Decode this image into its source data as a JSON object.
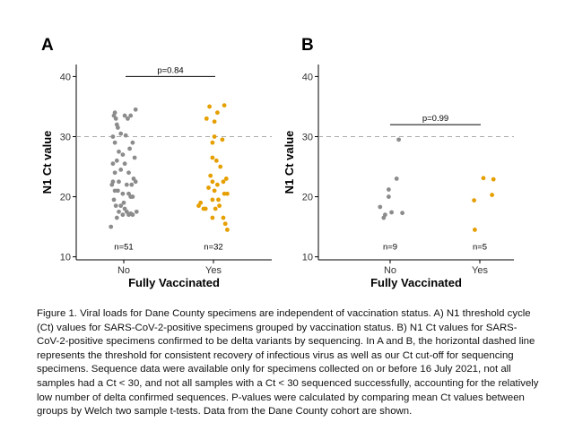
{
  "chart_data": [
    {
      "panel_label": "A",
      "type": "scatter",
      "xlabel": "Fully Vaccinated",
      "ylabel": "N1 Ct value",
      "categories": [
        "No",
        "Yes"
      ],
      "ylim": [
        9.5,
        42
      ],
      "yticks": [
        "10",
        "20",
        "30",
        "40"
      ],
      "threshold": 30,
      "grid": false,
      "colors": {
        "No": "#8c8c8c",
        "Yes": "#e69f00"
      },
      "pvalue_label": "p=0.84",
      "n_labels": [
        "n=51",
        "n=32"
      ],
      "series": [
        {
          "name": "No",
          "points": [
            {
              "j": -0.26,
              "y": 15.0
            },
            {
              "j": -0.22,
              "y": 22.5
            },
            {
              "j": -0.18,
              "y": 21.0
            },
            {
              "j": -0.14,
              "y": 16.5
            },
            {
              "j": -0.1,
              "y": 17.5
            },
            {
              "j": -0.06,
              "y": 18.5
            },
            {
              "j": -0.02,
              "y": 17.0
            },
            {
              "j": 0.02,
              "y": 18.0
            },
            {
              "j": 0.06,
              "y": 17.5
            },
            {
              "j": 0.1,
              "y": 17.0
            },
            {
              "j": 0.14,
              "y": 17.2
            },
            {
              "j": 0.18,
              "y": 17.0
            },
            {
              "j": 0.26,
              "y": 17.5
            },
            {
              "j": -0.2,
              "y": 33.5
            },
            {
              "j": -0.18,
              "y": 34.0
            },
            {
              "j": -0.16,
              "y": 33.0
            },
            {
              "j": -0.14,
              "y": 32.0
            },
            {
              "j": -0.12,
              "y": 31.5
            },
            {
              "j": 0.02,
              "y": 33.5
            },
            {
              "j": 0.08,
              "y": 33.0
            },
            {
              "j": 0.14,
              "y": 33.5
            },
            {
              "j": 0.24,
              "y": 34.5
            },
            {
              "j": -0.22,
              "y": 30.0
            },
            {
              "j": -0.06,
              "y": 30.5
            },
            {
              "j": 0.04,
              "y": 30.2
            },
            {
              "j": 0.18,
              "y": 29.0
            },
            {
              "j": -0.18,
              "y": 29.0
            },
            {
              "j": -0.1,
              "y": 27.5
            },
            {
              "j": 0.12,
              "y": 28.0
            },
            {
              "j": -0.02,
              "y": 27.0
            },
            {
              "j": -0.22,
              "y": 25.5
            },
            {
              "j": -0.14,
              "y": 26.0
            },
            {
              "j": 0.02,
              "y": 25.5
            },
            {
              "j": 0.22,
              "y": 26.5
            },
            {
              "j": -0.18,
              "y": 24.0
            },
            {
              "j": -0.06,
              "y": 24.5
            },
            {
              "j": 0.1,
              "y": 24.0
            },
            {
              "j": 0.2,
              "y": 23.0
            },
            {
              "j": -0.24,
              "y": 22.0
            },
            {
              "j": -0.1,
              "y": 22.5
            },
            {
              "j": 0.06,
              "y": 22.0
            },
            {
              "j": 0.16,
              "y": 22.0
            },
            {
              "j": 0.24,
              "y": 22.5
            },
            {
              "j": -0.12,
              "y": 21.0
            },
            {
              "j": -0.02,
              "y": 20.5
            },
            {
              "j": 0.1,
              "y": 20.5
            },
            {
              "j": 0.18,
              "y": 20.0
            },
            {
              "j": -0.2,
              "y": 19.5
            },
            {
              "j": 0.0,
              "y": 19.0
            },
            {
              "j": 0.14,
              "y": 20.0
            },
            {
              "j": -0.16,
              "y": 18.5
            }
          ]
        },
        {
          "name": "Yes",
          "points": [
            {
              "j": -0.08,
              "y": 35.0
            },
            {
              "j": 0.08,
              "y": 34.0
            },
            {
              "j": 0.22,
              "y": 35.2
            },
            {
              "j": -0.14,
              "y": 33.0
            },
            {
              "j": 0.02,
              "y": 32.5
            },
            {
              "j": 0.02,
              "y": 30.0
            },
            {
              "j": -0.02,
              "y": 29.0
            },
            {
              "j": 0.18,
              "y": 29.5
            },
            {
              "j": -0.02,
              "y": 26.5
            },
            {
              "j": 0.06,
              "y": 26.0
            },
            {
              "j": 0.14,
              "y": 25.0
            },
            {
              "j": -0.06,
              "y": 23.5
            },
            {
              "j": 0.26,
              "y": 23.0
            },
            {
              "j": -0.02,
              "y": 22.5
            },
            {
              "j": 0.08,
              "y": 22.0
            },
            {
              "j": 0.2,
              "y": 22.5
            },
            {
              "j": -0.1,
              "y": 21.5
            },
            {
              "j": 0.02,
              "y": 21.0
            },
            {
              "j": 0.22,
              "y": 20.5
            },
            {
              "j": 0.28,
              "y": 20.5
            },
            {
              "j": -0.26,
              "y": 19.0
            },
            {
              "j": -0.02,
              "y": 19.5
            },
            {
              "j": 0.1,
              "y": 19.5
            },
            {
              "j": -0.3,
              "y": 18.5
            },
            {
              "j": -0.2,
              "y": 18.0
            },
            {
              "j": -0.16,
              "y": 18.0
            },
            {
              "j": 0.04,
              "y": 18.0
            },
            {
              "j": 0.12,
              "y": 18.5
            },
            {
              "j": -0.02,
              "y": 16.5
            },
            {
              "j": 0.2,
              "y": 16.5
            },
            {
              "j": 0.24,
              "y": 15.5
            },
            {
              "j": 0.28,
              "y": 14.5
            }
          ]
        }
      ]
    },
    {
      "panel_label": "B",
      "type": "scatter",
      "xlabel": "Fully Vaccinated",
      "ylabel": "N1 Ct value",
      "categories": [
        "No",
        "Yes"
      ],
      "ylim": [
        9.5,
        42
      ],
      "yticks": [
        "10",
        "20",
        "30",
        "40"
      ],
      "threshold": 30,
      "grid": false,
      "colors": {
        "No": "#8c8c8c",
        "Yes": "#e69f00"
      },
      "pvalue_label": "p=0.99",
      "n_labels": [
        "n=9",
        "n=5"
      ],
      "series": [
        {
          "name": "No",
          "points": [
            {
              "j": -0.28,
              "y": 18.3
            },
            {
              "j": -0.18,
              "y": 16.5
            },
            {
              "j": -0.14,
              "y": 17.0
            },
            {
              "j": -0.04,
              "y": 21.2
            },
            {
              "j": -0.04,
              "y": 20.0
            },
            {
              "j": 0.04,
              "y": 17.4
            },
            {
              "j": 0.18,
              "y": 23.0
            },
            {
              "j": 0.24,
              "y": 29.5
            },
            {
              "j": 0.34,
              "y": 17.3
            }
          ]
        },
        {
          "name": "Yes",
          "points": [
            {
              "j": -0.16,
              "y": 19.4
            },
            {
              "j": -0.14,
              "y": 14.5
            },
            {
              "j": 0.1,
              "y": 23.1
            },
            {
              "j": 0.34,
              "y": 20.3
            },
            {
              "j": 0.38,
              "y": 22.9
            }
          ]
        }
      ]
    }
  ],
  "caption": "Figure 1. Viral loads for Dane County specimens are independent of vaccination status. A) N1 threshold cycle (Ct) values for SARS-CoV-2-positive specimens grouped by vaccination status. B) N1 Ct values for SARS-CoV-2-positive specimens confirmed to be delta variants by sequencing. In A and B, the horizontal dashed line represents the threshold for consistent recovery of infectious virus as well as our Ct cut-off for sequencing specimens. Sequence data were available only for specimens collected on or before 16 July 2021, not all samples had a Ct < 30, and not all samples with a Ct < 30 sequenced successfully, accounting for the relatively low number of delta confirmed sequences. P-values were calculated by comparing mean Ct values between groups by Welch two sample t-tests. Data from the Dane County cohort are shown."
}
